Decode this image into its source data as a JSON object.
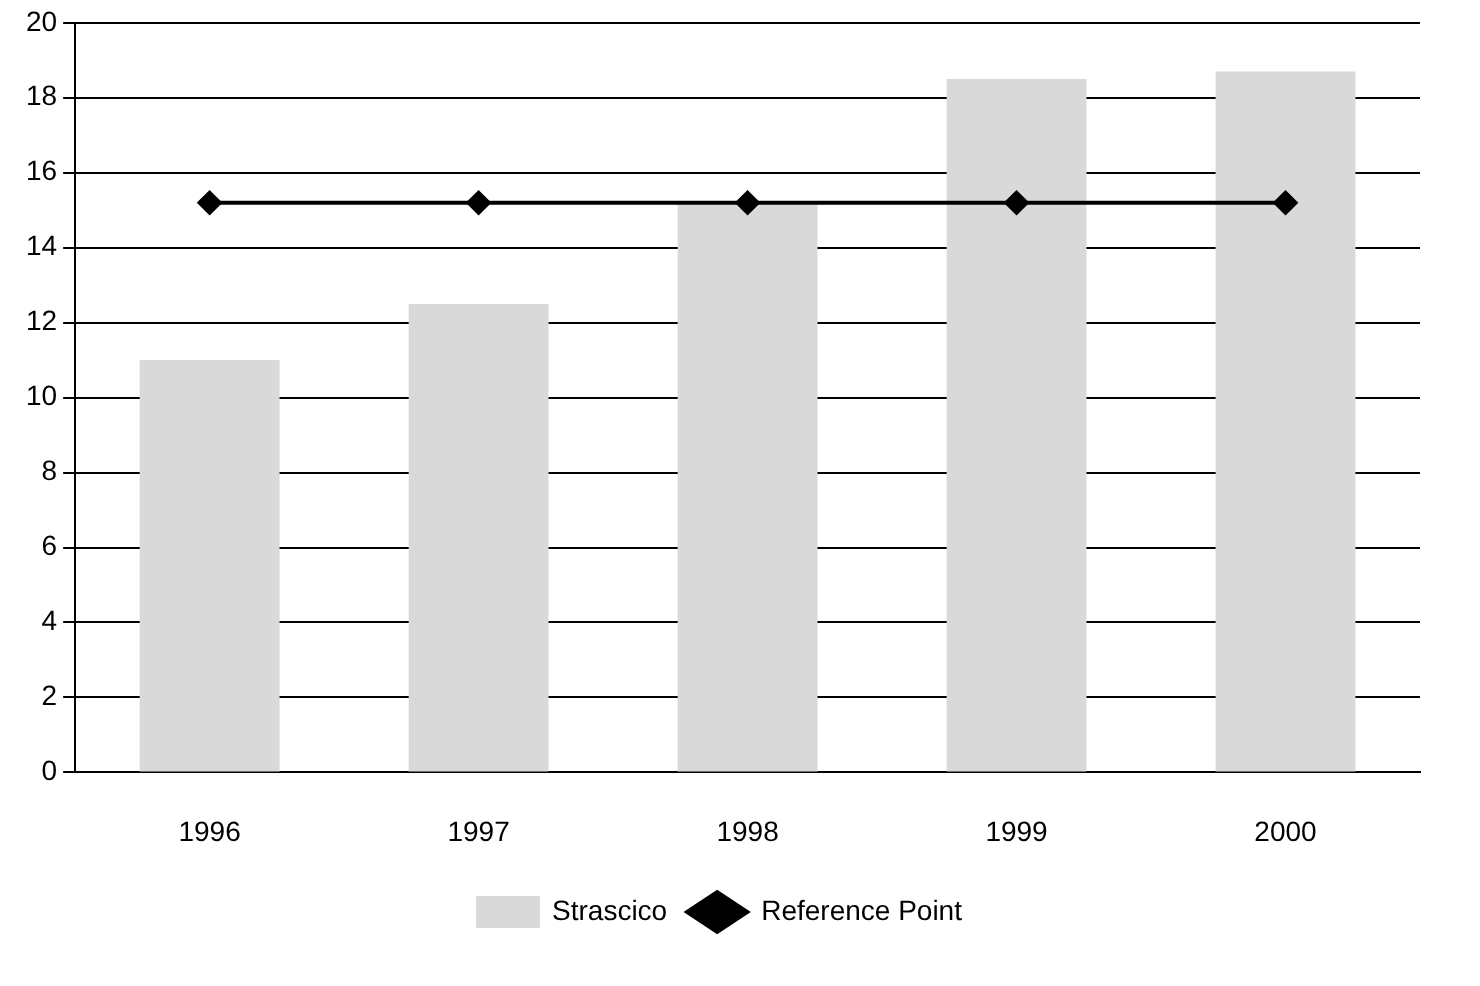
{
  "chart_data": {
    "type": "bar",
    "categories": [
      "1996",
      "1997",
      "1998",
      "1999",
      "2000"
    ],
    "series": [
      {
        "name": "Strascico",
        "color": "#d9d9d9",
        "values": [
          11.0,
          12.5,
          15.2,
          18.5,
          18.7
        ]
      },
      {
        "name": "Reference Point",
        "type": "line",
        "color": "#000000",
        "values": [
          15.2,
          15.2,
          15.2,
          15.2,
          15.2
        ]
      }
    ],
    "ylim": [
      0,
      20
    ],
    "yticks": [
      0,
      2,
      4,
      6,
      8,
      10,
      12,
      14,
      16,
      18,
      20
    ],
    "grid": "y",
    "legend": "bottom",
    "marker": "diamond",
    "line_style": "solid"
  }
}
